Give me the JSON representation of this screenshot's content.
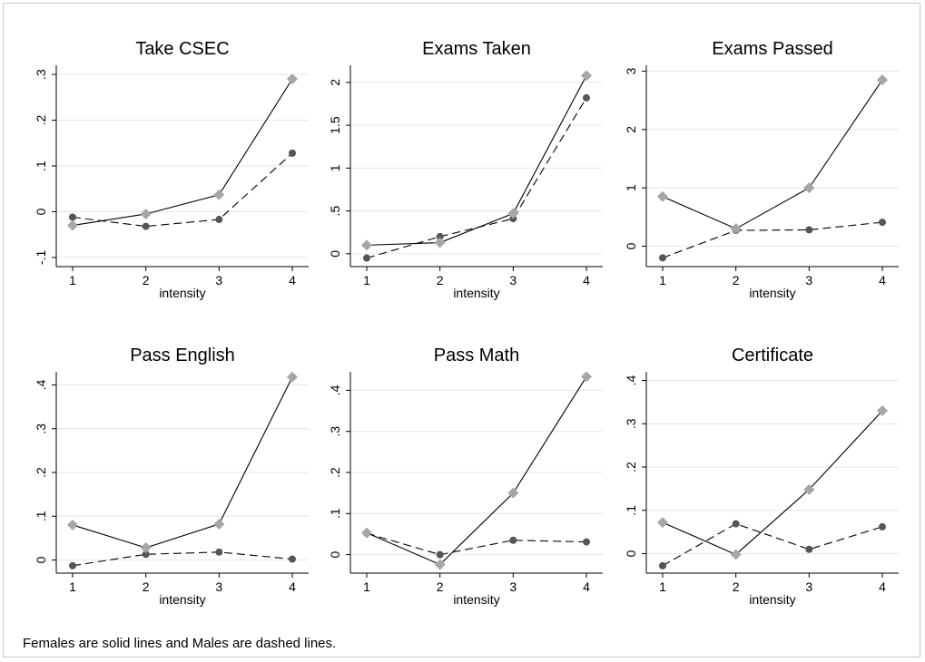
{
  "figure": {
    "note": "Females are solid lines and Males are dashed lines."
  },
  "colors": {
    "females_marker": "#a6a6a6",
    "males_marker": "#555555",
    "line": "#000000",
    "grid": "#e6e6e6"
  },
  "chart_data": [
    {
      "type": "line",
      "title": "Take CSEC",
      "xlabel": "intensity",
      "ylabel": "",
      "x": [
        1,
        2,
        3,
        4
      ],
      "ylim": [
        -0.12,
        0.32
      ],
      "yticks": [
        -0.1,
        0,
        0.1,
        0.2,
        0.3
      ],
      "ytick_labels": [
        "-.1",
        "0",
        ".1",
        ".2",
        ".3"
      ],
      "grid": true,
      "series": [
        {
          "line_style": "solid",
          "marker": "diamond",
          "values": [
            -0.03,
            -0.005,
            0.037,
            0.29
          ]
        },
        {
          "line_style": "dashed",
          "marker": "circle",
          "values": [
            -0.012,
            -0.032,
            -0.017,
            0.128
          ]
        }
      ]
    },
    {
      "type": "line",
      "title": "Exams Taken",
      "xlabel": "intensity",
      "ylabel": "",
      "x": [
        1,
        2,
        3,
        4
      ],
      "ylim": [
        -0.15,
        2.2
      ],
      "yticks": [
        0,
        0.5,
        1,
        1.5,
        2
      ],
      "ytick_labels": [
        "0",
        ".5",
        "1",
        "1.5",
        "2"
      ],
      "grid": true,
      "series": [
        {
          "line_style": "solid",
          "marker": "diamond",
          "values": [
            0.1,
            0.13,
            0.47,
            2.08
          ]
        },
        {
          "line_style": "dashed",
          "marker": "circle",
          "values": [
            -0.05,
            0.2,
            0.41,
            1.82
          ]
        }
      ]
    },
    {
      "type": "line",
      "title": "Exams Passed",
      "xlabel": "intensity",
      "ylabel": "",
      "x": [
        1,
        2,
        3,
        4
      ],
      "ylim": [
        -0.35,
        3.1
      ],
      "yticks": [
        0,
        1,
        2,
        3
      ],
      "ytick_labels": [
        "0",
        "1",
        "2",
        "3"
      ],
      "grid": true,
      "series": [
        {
          "line_style": "solid",
          "marker": "diamond",
          "values": [
            0.85,
            0.3,
            1.0,
            2.85
          ]
        },
        {
          "line_style": "dashed",
          "marker": "circle",
          "values": [
            -0.2,
            0.27,
            0.28,
            0.41
          ]
        }
      ]
    },
    {
      "type": "line",
      "title": "Pass English",
      "xlabel": "intensity",
      "ylabel": "",
      "x": [
        1,
        2,
        3,
        4
      ],
      "ylim": [
        -0.03,
        0.43
      ],
      "yticks": [
        0,
        0.1,
        0.2,
        0.3,
        0.4
      ],
      "ytick_labels": [
        "0",
        ".1",
        ".2",
        ".3",
        ".4"
      ],
      "grid": true,
      "series": [
        {
          "line_style": "solid",
          "marker": "diamond",
          "values": [
            0.08,
            0.028,
            0.082,
            0.418
          ]
        },
        {
          "line_style": "dashed",
          "marker": "circle",
          "values": [
            -0.013,
            0.013,
            0.018,
            0.002
          ]
        }
      ]
    },
    {
      "type": "line",
      "title": "Pass Math",
      "xlabel": "intensity",
      "ylabel": "",
      "x": [
        1,
        2,
        3,
        4
      ],
      "ylim": [
        -0.045,
        0.445
      ],
      "yticks": [
        0,
        0.1,
        0.2,
        0.3,
        0.4
      ],
      "ytick_labels": [
        "0",
        ".1",
        ".2",
        ".3",
        ".4"
      ],
      "grid": true,
      "series": [
        {
          "line_style": "solid",
          "marker": "diamond",
          "values": [
            0.053,
            -0.024,
            0.15,
            0.433
          ]
        },
        {
          "line_style": "dashed",
          "marker": "circle",
          "values": [
            0.052,
            0.0,
            0.035,
            0.031
          ]
        }
      ]
    },
    {
      "type": "line",
      "title": "Certificate",
      "xlabel": "intensity",
      "ylabel": "",
      "x": [
        1,
        2,
        3,
        4
      ],
      "ylim": [
        -0.045,
        0.42
      ],
      "yticks": [
        0,
        0.1,
        0.2,
        0.3,
        0.4
      ],
      "ytick_labels": [
        "0",
        ".1",
        ".2",
        ".3",
        ".4"
      ],
      "grid": true,
      "series": [
        {
          "line_style": "solid",
          "marker": "diamond",
          "values": [
            0.072,
            -0.002,
            0.148,
            0.33
          ]
        },
        {
          "line_style": "dashed",
          "marker": "circle",
          "values": [
            -0.028,
            0.069,
            0.01,
            0.062
          ]
        }
      ]
    }
  ]
}
